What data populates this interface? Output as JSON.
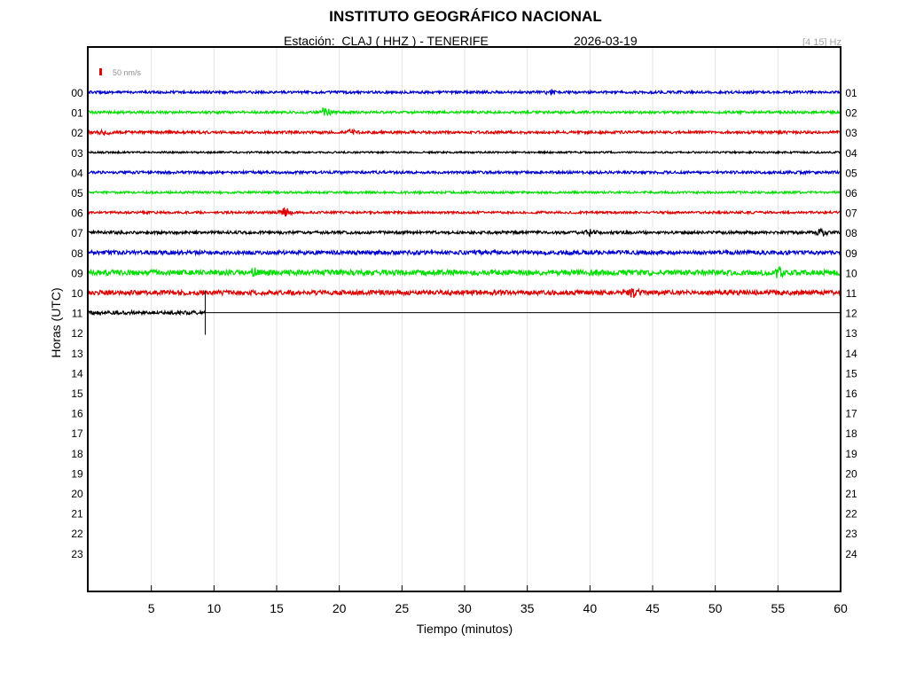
{
  "header": {
    "title": "INSTITUTO GEOGRÁFICO NACIONAL",
    "station": "Estación:  CLAJ ( HHZ ) - TENERIFE",
    "date": "2026-03-19",
    "band": "[4 15] Hz"
  },
  "chart_data": {
    "type": "line",
    "xlabel": "Tiempo (minutos)",
    "ylabel": "Horas (UTC)",
    "xlim": [
      0,
      60
    ],
    "x_ticks": [
      5,
      10,
      15,
      20,
      25,
      30,
      35,
      40,
      45,
      50,
      55,
      60
    ],
    "left_hour_labels": [
      "00",
      "01",
      "02",
      "03",
      "04",
      "05",
      "06",
      "07",
      "08",
      "09",
      "10",
      "11",
      "12",
      "13",
      "14",
      "15",
      "16",
      "17",
      "18",
      "19",
      "20",
      "21",
      "22",
      "23"
    ],
    "right_hour_labels": [
      "01",
      "02",
      "03",
      "04",
      "05",
      "06",
      "07",
      "08",
      "09",
      "10",
      "11",
      "12",
      "13",
      "14",
      "15",
      "16",
      "17",
      "18",
      "19",
      "20",
      "21",
      "22",
      "23",
      "24"
    ],
    "scale_label": "50 nm/s",
    "scale_color": "#e00000",
    "grid": true,
    "trace_colors": [
      "#0000cc",
      "#00dd00",
      "#dd0000",
      "#000000"
    ],
    "data_end_minute": 9.3,
    "series": [
      {
        "hour": "00",
        "color": "#0000cc",
        "noise": 1.4,
        "events": [
          {
            "t": 36.9,
            "amp": 2.2
          }
        ]
      },
      {
        "hour": "01",
        "color": "#00dd00",
        "noise": 1.4,
        "events": [
          {
            "t": 18.9,
            "amp": 4.5
          }
        ]
      },
      {
        "hour": "02",
        "color": "#dd0000",
        "noise": 1.5,
        "events": [
          {
            "t": 1.3,
            "amp": 2.5
          },
          {
            "t": 21.0,
            "amp": 2.2
          }
        ]
      },
      {
        "hour": "03",
        "color": "#000000",
        "noise": 1.0,
        "events": []
      },
      {
        "hour": "04",
        "color": "#0000cc",
        "noise": 1.5,
        "events": []
      },
      {
        "hour": "05",
        "color": "#00dd00",
        "noise": 1.2,
        "events": []
      },
      {
        "hour": "06",
        "color": "#dd0000",
        "noise": 1.3,
        "events": [
          {
            "t": 15.7,
            "amp": 5.0
          }
        ]
      },
      {
        "hour": "07",
        "color": "#000000",
        "noise": 1.6,
        "events": [
          {
            "t": 40.0,
            "amp": 2.6
          },
          {
            "t": 58.5,
            "amp": 3.2
          }
        ]
      },
      {
        "hour": "08",
        "color": "#0000cc",
        "noise": 2.2,
        "events": []
      },
      {
        "hour": "09",
        "color": "#00dd00",
        "noise": 3.0,
        "events": [
          {
            "t": 13.3,
            "amp": 3.5
          },
          {
            "t": 55.0,
            "amp": 3.8
          }
        ]
      },
      {
        "hour": "10",
        "color": "#dd0000",
        "noise": 2.6,
        "events": [
          {
            "t": 43.5,
            "amp": 4.0
          }
        ]
      },
      {
        "hour": "11",
        "color": "#000000",
        "noise": 2.0,
        "events": []
      }
    ]
  }
}
